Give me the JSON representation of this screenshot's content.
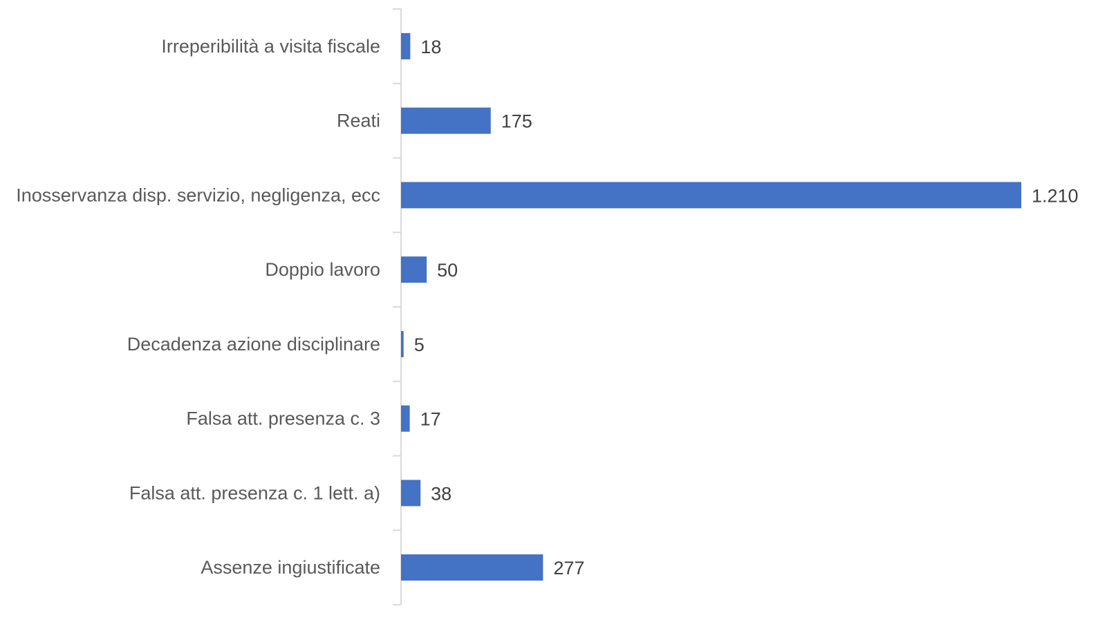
{
  "chart_data": {
    "type": "bar",
    "orientation": "horizontal",
    "title": "",
    "xlabel": "",
    "ylabel": "",
    "categories": [
      "Irreperibilità a visita fiscale",
      "Reati",
      "Inosservanza disp. servizio, negligenza, ecc",
      "Doppio lavoro",
      "Decadenza azione disciplinare",
      "Falsa att. presenza c. 3",
      "Falsa att. presenza c. 1 lett. a)",
      "Assenze ingiustificate"
    ],
    "values": [
      18,
      175,
      1210,
      50,
      5,
      17,
      38,
      277
    ],
    "value_labels": [
      "18",
      "175",
      "1.210",
      "50",
      "5",
      "17",
      "38",
      "277"
    ],
    "xlim": [
      0,
      1210
    ],
    "grid": false,
    "legend": "none",
    "colors": {
      "bar": "#4472C4",
      "axis": "#D9D9D9",
      "category_text": "#595959",
      "value_text": "#404040"
    }
  }
}
